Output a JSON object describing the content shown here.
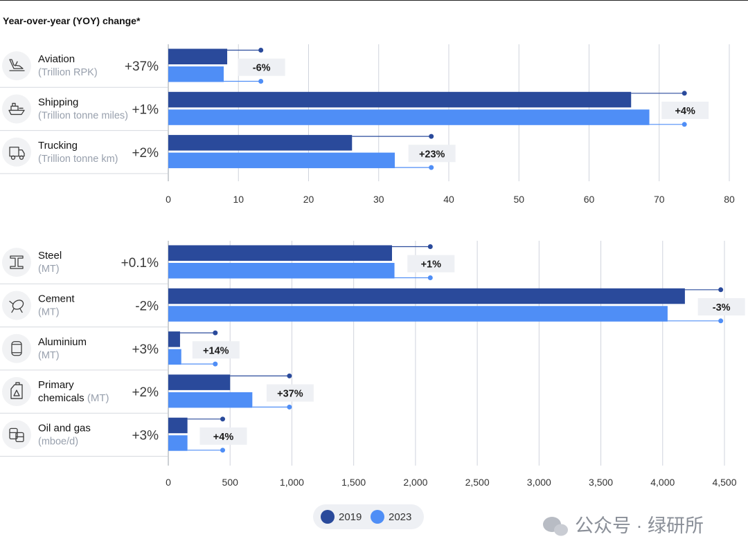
{
  "header": {
    "title": "Year-over-year (YOY) change*"
  },
  "colors": {
    "s2019": "#2a4a9b",
    "s2023": "#4f8ef6",
    "grid": "#cfd3dc",
    "badge": "#eef0f4",
    "label": "#121212",
    "sub": "#98a0ad",
    "pct": "#3a3a3a",
    "icon": "#f1f2f4",
    "divider": "#d6d9df"
  },
  "legend": {
    "items": [
      {
        "label": "2019",
        "color": "#2a4a9b"
      },
      {
        "label": "2023",
        "color": "#4f8ef6"
      }
    ]
  },
  "watermark": {
    "text": "公众号 · 绿研所"
  },
  "chart_data": [
    {
      "type": "bar",
      "orientation": "horizontal",
      "title": "Year-over-year (YOY) change*",
      "xlim": [
        0,
        80
      ],
      "x_ticks": [
        0,
        10,
        20,
        30,
        40,
        50,
        60,
        70,
        80
      ],
      "x_tick_labels": [
        "0",
        "10",
        "20",
        "30",
        "40",
        "50",
        "60",
        "70",
        "80"
      ],
      "categories": [
        {
          "name": "Aviation",
          "unit": "(Trillion RPK)",
          "icon": "airplane-icon",
          "yoy_change": "+37%",
          "marker_2019": 13.2,
          "marker_2023": 13.2,
          "marker_label": "-6%"
        },
        {
          "name": "Shipping",
          "unit": "(Trillion tonne miles)",
          "icon": "ship-icon",
          "yoy_change": "+1%",
          "marker_2019": 73.6,
          "marker_2023": 73.6,
          "marker_label": "+4%"
        },
        {
          "name": "Trucking",
          "unit": "(Trillion tonne km)",
          "icon": "truck-icon",
          "yoy_change": "+2%",
          "marker_2019": 37.5,
          "marker_2023": 37.5,
          "marker_label": "+23%"
        }
      ],
      "series": [
        {
          "name": "2019",
          "values": [
            8.4,
            66.0,
            26.2
          ]
        },
        {
          "name": "2023",
          "values": [
            7.9,
            68.6,
            32.3
          ]
        }
      ]
    },
    {
      "type": "bar",
      "orientation": "horizontal",
      "xlim": [
        0,
        4500
      ],
      "x_ticks": [
        0,
        500,
        1000,
        1500,
        2000,
        2500,
        3000,
        3500,
        4000,
        4500
      ],
      "x_tick_labels": [
        "0",
        "500",
        "1,000",
        "1,500",
        "2,000",
        "2,500",
        "3,000",
        "3,500",
        "4,000",
        "4,500"
      ],
      "categories": [
        {
          "name": "Steel",
          "unit": "(MT)",
          "icon": "steel-beam-icon",
          "yoy_change": "+0.1%",
          "marker_2019": 2120,
          "marker_2023": 2120,
          "marker_label": "+1%"
        },
        {
          "name": "Cement",
          "unit": "(MT)",
          "icon": "cement-mixer-icon",
          "yoy_change": "-2%",
          "marker_2019": 4470,
          "marker_2023": 4470,
          "marker_label": "-3%"
        },
        {
          "name": "Aluminium",
          "unit": "(MT)",
          "icon": "aluminium-can-icon",
          "yoy_change": "+3%",
          "marker_2019": 380,
          "marker_2023": 380,
          "marker_label": "+14%"
        },
        {
          "name": "Primary chemicals",
          "unit": "(MT)",
          "icon": "chemical-container-icon",
          "yoy_change": "+2%",
          "marker_2019": 980,
          "marker_2023": 980,
          "marker_label": "+37%"
        },
        {
          "name": "Oil and gas",
          "unit": "(mboe/d)",
          "icon": "oil-barrels-icon",
          "yoy_change": "+3%",
          "marker_2019": 440,
          "marker_2023": 440,
          "marker_label": "+4%"
        }
      ],
      "series": [
        {
          "name": "2019",
          "values": [
            1810,
            4180,
            95,
            500,
            155
          ]
        },
        {
          "name": "2023",
          "values": [
            1830,
            4040,
            105,
            680,
            155
          ]
        }
      ]
    }
  ]
}
